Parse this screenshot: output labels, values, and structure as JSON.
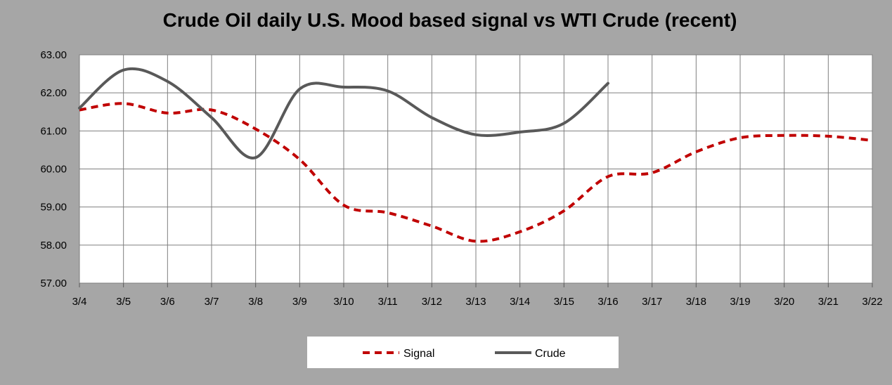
{
  "chart_data": {
    "type": "line",
    "title": "Crude Oil daily U.S. Mood based signal vs WTI Crude (recent)",
    "xlabel": "",
    "ylabel": "",
    "categories": [
      "3/4",
      "3/5",
      "3/6",
      "3/7",
      "3/8",
      "3/9",
      "3/10",
      "3/11",
      "3/12",
      "3/13",
      "3/14",
      "3/15",
      "3/16",
      "3/17",
      "3/18",
      "3/19",
      "3/20",
      "3/21",
      "3/22"
    ],
    "y_ticks": [
      "57.00",
      "58.00",
      "59.00",
      "60.00",
      "61.00",
      "62.00",
      "63.00"
    ],
    "ylim": [
      57,
      63
    ],
    "grid": true,
    "legend_position": "bottom",
    "series": [
      {
        "name": "Signal",
        "style": "dashed",
        "color": "#c00000",
        "values": [
          61.55,
          61.72,
          61.47,
          61.55,
          61.05,
          60.25,
          59.05,
          58.85,
          58.5,
          58.1,
          58.35,
          58.9,
          59.8,
          59.9,
          60.45,
          60.82,
          60.88,
          60.86,
          60.75
        ]
      },
      {
        "name": "Crude",
        "style": "solid",
        "color": "#595959",
        "values": [
          61.6,
          62.6,
          62.3,
          61.35,
          60.3,
          62.1,
          62.15,
          62.05,
          61.35,
          60.9,
          60.97,
          61.2,
          62.25,
          null,
          null,
          null,
          null,
          null,
          null
        ]
      }
    ]
  }
}
